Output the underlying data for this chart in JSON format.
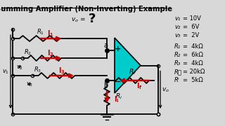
{
  "title": "Summing Amplifier (Non-Inverting) Example",
  "bg_color": "#d8d8d8",
  "title_color": "#000000",
  "circuit_color": "#000000",
  "red_color": "#cc0000",
  "cyan_color": "#00cccc",
  "params_v": [
    [
      "v₁",
      "= 10V"
    ],
    [
      "v₂",
      "=  6V"
    ],
    [
      "v₃",
      "=  2V"
    ]
  ],
  "params_r": [
    [
      "R₁",
      "=  4kΩ"
    ],
    [
      "R₂",
      "=  6kΩ"
    ],
    [
      "R₃",
      "=  4kΩ"
    ],
    [
      "R⁦",
      "= 20kΩ"
    ],
    [
      "Rᴵ",
      "=  5kΩ"
    ]
  ]
}
